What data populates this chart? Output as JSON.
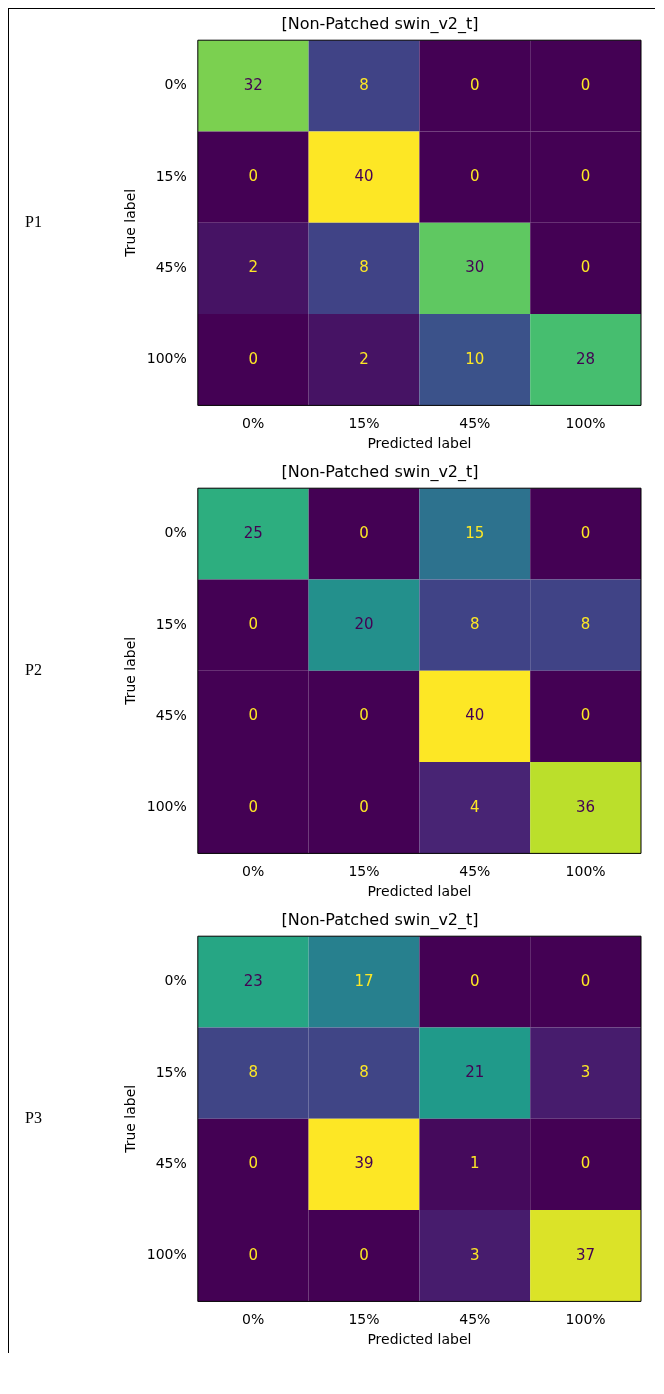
{
  "chart_data": [
    {
      "type": "heatmap",
      "title": "[Non-Patched swin_v2_t]",
      "xlabel": "Predicted label",
      "ylabel": "True label",
      "annotations": [
        "P1"
      ],
      "categories": [
        "0%",
        "15%",
        "45%",
        "100%"
      ],
      "y_categories": [
        "0%",
        "15%",
        "45%",
        "100%"
      ],
      "data_labels": true,
      "cells": [
        [
          32,
          8,
          0,
          0
        ],
        [
          0,
          40,
          0,
          0
        ],
        [
          2,
          8,
          30,
          0
        ],
        [
          0,
          2,
          10,
          28
        ]
      ]
    },
    {
      "type": "heatmap",
      "title": "[Non-Patched swin_v2_t]",
      "xlabel": "Predicted label",
      "ylabel": "True label",
      "annotations": [
        "P2"
      ],
      "categories": [
        "0%",
        "15%",
        "45%",
        "100%"
      ],
      "y_categories": [
        "0%",
        "15%",
        "45%",
        "100%"
      ],
      "data_labels": true,
      "cells": [
        [
          25,
          0,
          15,
          0
        ],
        [
          0,
          20,
          8,
          8
        ],
        [
          0,
          0,
          40,
          0
        ],
        [
          0,
          0,
          4,
          36
        ]
      ]
    },
    {
      "type": "heatmap",
      "title": "[Non-Patched swin_v2_t]",
      "xlabel": "Predicted label",
      "ylabel": "True label",
      "annotations": [
        "P3"
      ],
      "categories": [
        "0%",
        "15%",
        "45%",
        "100%"
      ],
      "y_categories": [
        "0%",
        "15%",
        "45%",
        "100%"
      ],
      "data_labels": true,
      "cells": [
        [
          23,
          17,
          0,
          0
        ],
        [
          8,
          8,
          21,
          3
        ],
        [
          0,
          39,
          1,
          0
        ],
        [
          0,
          0,
          3,
          37
        ]
      ]
    }
  ]
}
